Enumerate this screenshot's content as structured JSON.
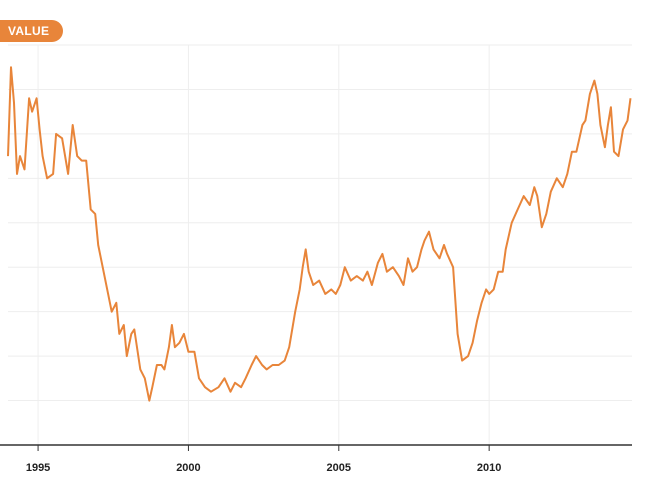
{
  "header": {
    "pill_label": "VALUE"
  },
  "colors": {
    "accent": "#e8853a",
    "grid": "#eeeeee",
    "axis": "#333333",
    "tick_text": "#222222"
  },
  "chart_data": {
    "type": "line",
    "title": "",
    "xlabel": "",
    "ylabel": "",
    "xlim": [
      1994.0,
      2014.75
    ],
    "ylim": [
      0,
      9
    ],
    "x_ticks": [
      1995,
      2000,
      2005,
      2010
    ],
    "x_tick_labels": [
      "1995",
      "2000",
      "2005",
      "2010"
    ],
    "y_ticks": [
      1,
      2,
      3,
      4,
      5,
      6,
      7,
      8,
      9
    ],
    "y_tick_labels": [],
    "grid": true,
    "series": [
      {
        "name": "",
        "color": "#e8853a",
        "points": [
          [
            1994.0,
            6.5
          ],
          [
            1994.1,
            8.5
          ],
          [
            1994.2,
            7.7
          ],
          [
            1994.3,
            6.1
          ],
          [
            1994.4,
            6.5
          ],
          [
            1994.55,
            6.2
          ],
          [
            1994.7,
            7.8
          ],
          [
            1994.8,
            7.5
          ],
          [
            1994.95,
            7.8
          ],
          [
            1995.05,
            7.1
          ],
          [
            1995.15,
            6.5
          ],
          [
            1995.3,
            6.0
          ],
          [
            1995.5,
            6.1
          ],
          [
            1995.6,
            7.0
          ],
          [
            1995.8,
            6.9
          ],
          [
            1995.9,
            6.5
          ],
          [
            1996.0,
            6.1
          ],
          [
            1996.15,
            7.2
          ],
          [
            1996.3,
            6.5
          ],
          [
            1996.45,
            6.4
          ],
          [
            1996.6,
            6.4
          ],
          [
            1996.75,
            5.3
          ],
          [
            1996.9,
            5.2
          ],
          [
            1997.0,
            4.5
          ],
          [
            1997.15,
            4.0
          ],
          [
            1997.3,
            3.5
          ],
          [
            1997.45,
            3.0
          ],
          [
            1997.6,
            3.2
          ],
          [
            1997.7,
            2.5
          ],
          [
            1997.85,
            2.7
          ],
          [
            1997.95,
            2.0
          ],
          [
            1998.1,
            2.5
          ],
          [
            1998.2,
            2.6
          ],
          [
            1998.4,
            1.7
          ],
          [
            1998.55,
            1.5
          ],
          [
            1998.7,
            1.0
          ],
          [
            1998.8,
            1.3
          ],
          [
            1998.95,
            1.8
          ],
          [
            1999.1,
            1.8
          ],
          [
            1999.2,
            1.7
          ],
          [
            1999.35,
            2.2
          ],
          [
            1999.45,
            2.7
          ],
          [
            1999.55,
            2.2
          ],
          [
            1999.7,
            2.3
          ],
          [
            1999.85,
            2.5
          ],
          [
            2000.0,
            2.1
          ],
          [
            2000.2,
            2.1
          ],
          [
            2000.35,
            1.5
          ],
          [
            2000.55,
            1.3
          ],
          [
            2000.75,
            1.2
          ],
          [
            2001.0,
            1.3
          ],
          [
            2001.2,
            1.5
          ],
          [
            2001.4,
            1.2
          ],
          [
            2001.55,
            1.4
          ],
          [
            2001.75,
            1.3
          ],
          [
            2001.9,
            1.5
          ],
          [
            2002.1,
            1.8
          ],
          [
            2002.25,
            2.0
          ],
          [
            2002.45,
            1.8
          ],
          [
            2002.6,
            1.7
          ],
          [
            2002.8,
            1.8
          ],
          [
            2003.0,
            1.8
          ],
          [
            2003.2,
            1.9
          ],
          [
            2003.35,
            2.2
          ],
          [
            2003.55,
            3.0
          ],
          [
            2003.7,
            3.5
          ],
          [
            2003.8,
            4.0
          ],
          [
            2003.9,
            4.4
          ],
          [
            2004.0,
            3.9
          ],
          [
            2004.15,
            3.6
          ],
          [
            2004.35,
            3.7
          ],
          [
            2004.55,
            3.4
          ],
          [
            2004.75,
            3.5
          ],
          [
            2004.9,
            3.4
          ],
          [
            2005.05,
            3.6
          ],
          [
            2005.2,
            4.0
          ],
          [
            2005.4,
            3.7
          ],
          [
            2005.6,
            3.8
          ],
          [
            2005.8,
            3.7
          ],
          [
            2005.95,
            3.9
          ],
          [
            2006.1,
            3.6
          ],
          [
            2006.3,
            4.1
          ],
          [
            2006.45,
            4.3
          ],
          [
            2006.6,
            3.9
          ],
          [
            2006.8,
            4.0
          ],
          [
            2007.0,
            3.8
          ],
          [
            2007.15,
            3.6
          ],
          [
            2007.3,
            4.2
          ],
          [
            2007.45,
            3.9
          ],
          [
            2007.6,
            4.0
          ],
          [
            2007.75,
            4.4
          ],
          [
            2007.85,
            4.6
          ],
          [
            2008.0,
            4.8
          ],
          [
            2008.15,
            4.4
          ],
          [
            2008.35,
            4.2
          ],
          [
            2008.5,
            4.5
          ],
          [
            2008.6,
            4.3
          ],
          [
            2008.8,
            4.0
          ],
          [
            2008.95,
            2.5
          ],
          [
            2009.1,
            1.9
          ],
          [
            2009.3,
            2.0
          ],
          [
            2009.45,
            2.3
          ],
          [
            2009.6,
            2.8
          ],
          [
            2009.75,
            3.2
          ],
          [
            2009.9,
            3.5
          ],
          [
            2010.0,
            3.4
          ],
          [
            2010.15,
            3.5
          ],
          [
            2010.3,
            3.9
          ],
          [
            2010.45,
            3.9
          ],
          [
            2010.55,
            4.4
          ],
          [
            2010.75,
            5.0
          ],
          [
            2010.95,
            5.3
          ],
          [
            2011.15,
            5.6
          ],
          [
            2011.35,
            5.4
          ],
          [
            2011.5,
            5.8
          ],
          [
            2011.6,
            5.6
          ],
          [
            2011.75,
            4.9
          ],
          [
            2011.9,
            5.2
          ],
          [
            2012.05,
            5.7
          ],
          [
            2012.25,
            6.0
          ],
          [
            2012.45,
            5.8
          ],
          [
            2012.6,
            6.1
          ],
          [
            2012.75,
            6.6
          ],
          [
            2012.9,
            6.6
          ],
          [
            2013.1,
            7.2
          ],
          [
            2013.2,
            7.3
          ],
          [
            2013.35,
            7.9
          ],
          [
            2013.5,
            8.2
          ],
          [
            2013.6,
            7.9
          ],
          [
            2013.7,
            7.2
          ],
          [
            2013.85,
            6.7
          ],
          [
            2013.95,
            7.2
          ],
          [
            2014.05,
            7.6
          ],
          [
            2014.15,
            6.6
          ],
          [
            2014.3,
            6.5
          ],
          [
            2014.45,
            7.1
          ],
          [
            2014.6,
            7.3
          ],
          [
            2014.7,
            7.8
          ]
        ]
      }
    ]
  }
}
